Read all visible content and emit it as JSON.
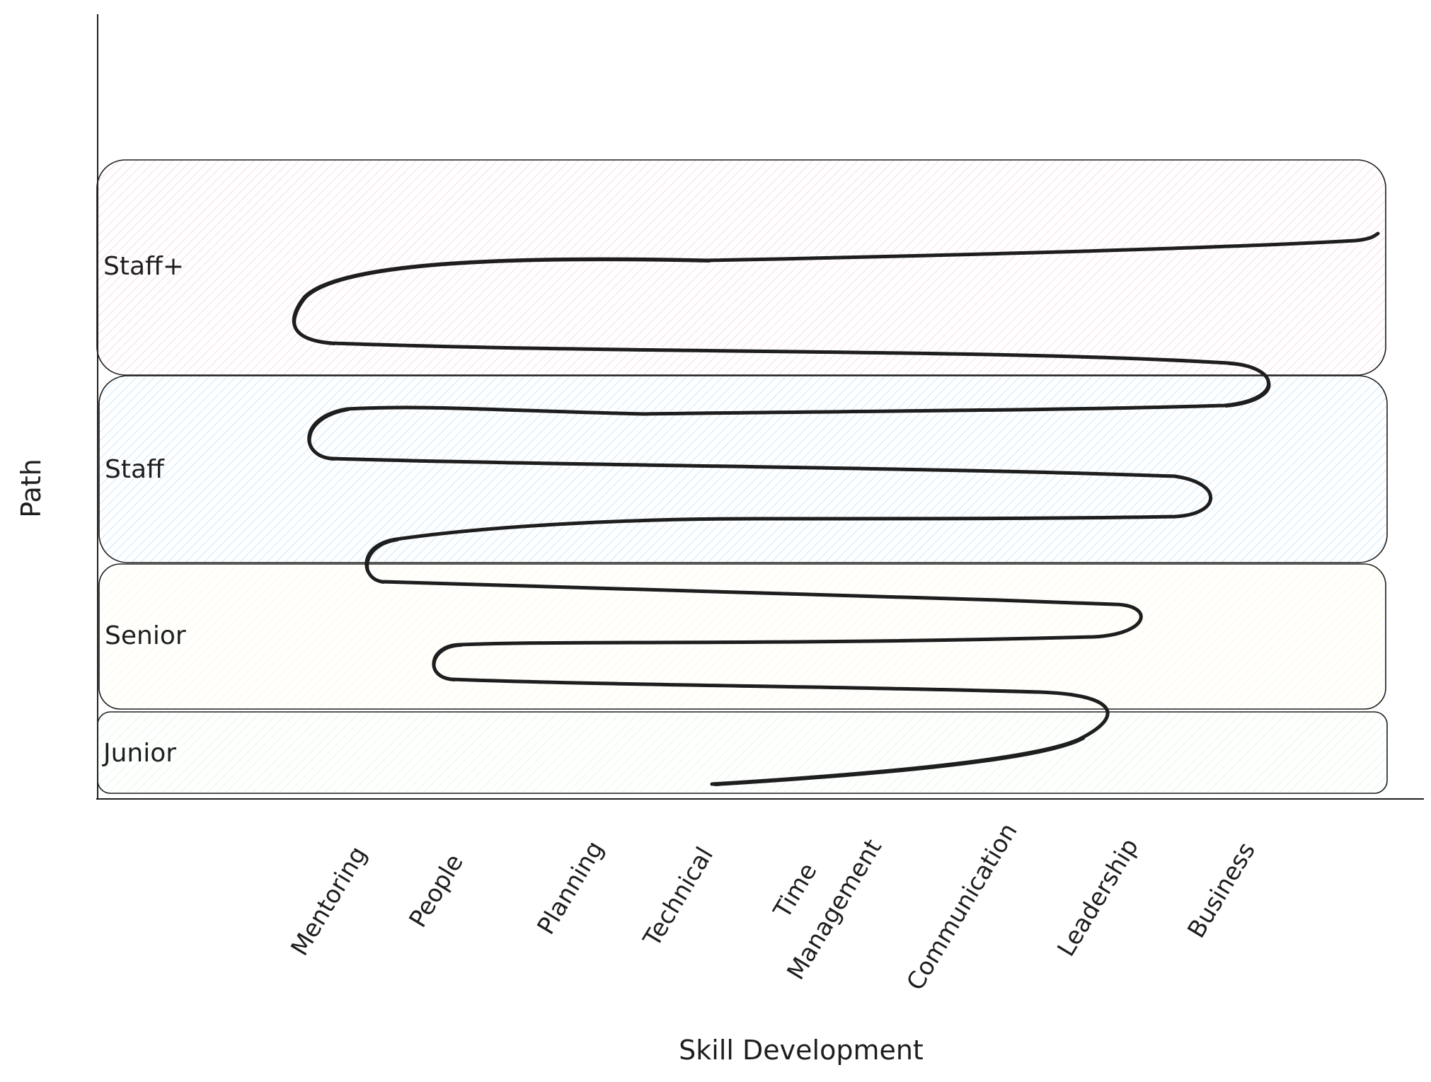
{
  "diagram": {
    "axis_titles": {
      "x": "Skill Development",
      "y": "Path"
    },
    "bands": [
      {
        "label": "Staff+",
        "color": "#f4a6b4"
      },
      {
        "label": "Staff",
        "color": "#74c0fc"
      },
      {
        "label": "Senior",
        "color": "#ffec99"
      },
      {
        "label": "Junior",
        "color": "#b2f2bb"
      }
    ],
    "skills": [
      {
        "label": "Mentoring"
      },
      {
        "label": "People"
      },
      {
        "label": "Planning"
      },
      {
        "label": "Technical"
      },
      {
        "label": "Time",
        "label_line2": "Management"
      },
      {
        "label": "Communication"
      },
      {
        "label": "Leadership"
      },
      {
        "label": "Business"
      }
    ],
    "path_color": "#1e1e1e",
    "axis_color": "#1e1e1e"
  }
}
